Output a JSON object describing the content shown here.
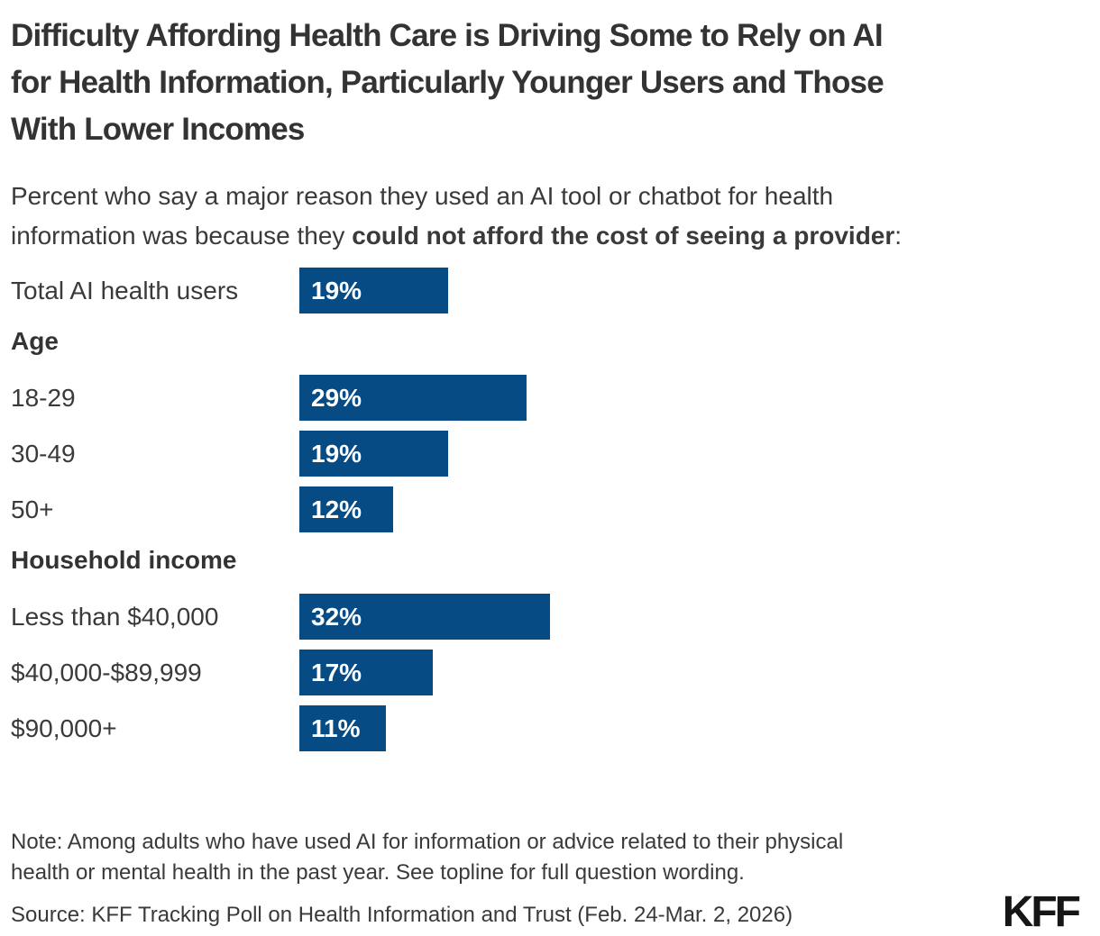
{
  "title": "Difficulty Affording Health Care is Driving Some to Rely on AI\nfor Health Information, Particularly Younger Users and Those\nWith Lower Incomes",
  "subtitle": {
    "line1": "Percent who say a major reason they used an AI tool or chatbot for health",
    "line2_regular": "information was because they ",
    "line2_bold": "could not afford the cost of seeing a provider",
    "line2_suffix": ":"
  },
  "chart_data": {
    "type": "bar",
    "orientation": "horizontal",
    "value_unit": "%",
    "xlim": [
      0,
      100
    ],
    "grid": false,
    "legend": false,
    "axis_labels_shown": false,
    "title": "Difficulty Affording Health Care is Driving Some to Rely on AI for Health Information, Particularly Younger Users and Those With Lower Incomes",
    "rows": [
      {
        "kind": "bar",
        "label": "Total AI health users",
        "value": 19
      },
      {
        "kind": "group_header",
        "label": "Age"
      },
      {
        "kind": "bar",
        "label": "18-29",
        "value": 29
      },
      {
        "kind": "bar",
        "label": "30-49",
        "value": 19
      },
      {
        "kind": "bar",
        "label": "50+",
        "value": 12
      },
      {
        "kind": "group_header",
        "label": "Household income"
      },
      {
        "kind": "bar",
        "label": "Less than $40,000",
        "value": 32
      },
      {
        "kind": "bar",
        "label": "$40,000-$89,999",
        "value": 17
      },
      {
        "kind": "bar",
        "label": "$90,000+",
        "value": 11
      }
    ]
  },
  "note": "Note: Among adults who have used AI for information or advice related to their physical\nhealth or mental health in the past year. See topline for full question wording.",
  "source": "Source: KFF Tracking Poll on Health Information and Trust (Feb. 24-Mar. 2, 2026)",
  "logo": "KFF",
  "colors": {
    "bar": "#064B83",
    "text": "#333333",
    "bar_value_text": "#FFFFFF",
    "logo": "#161616"
  }
}
